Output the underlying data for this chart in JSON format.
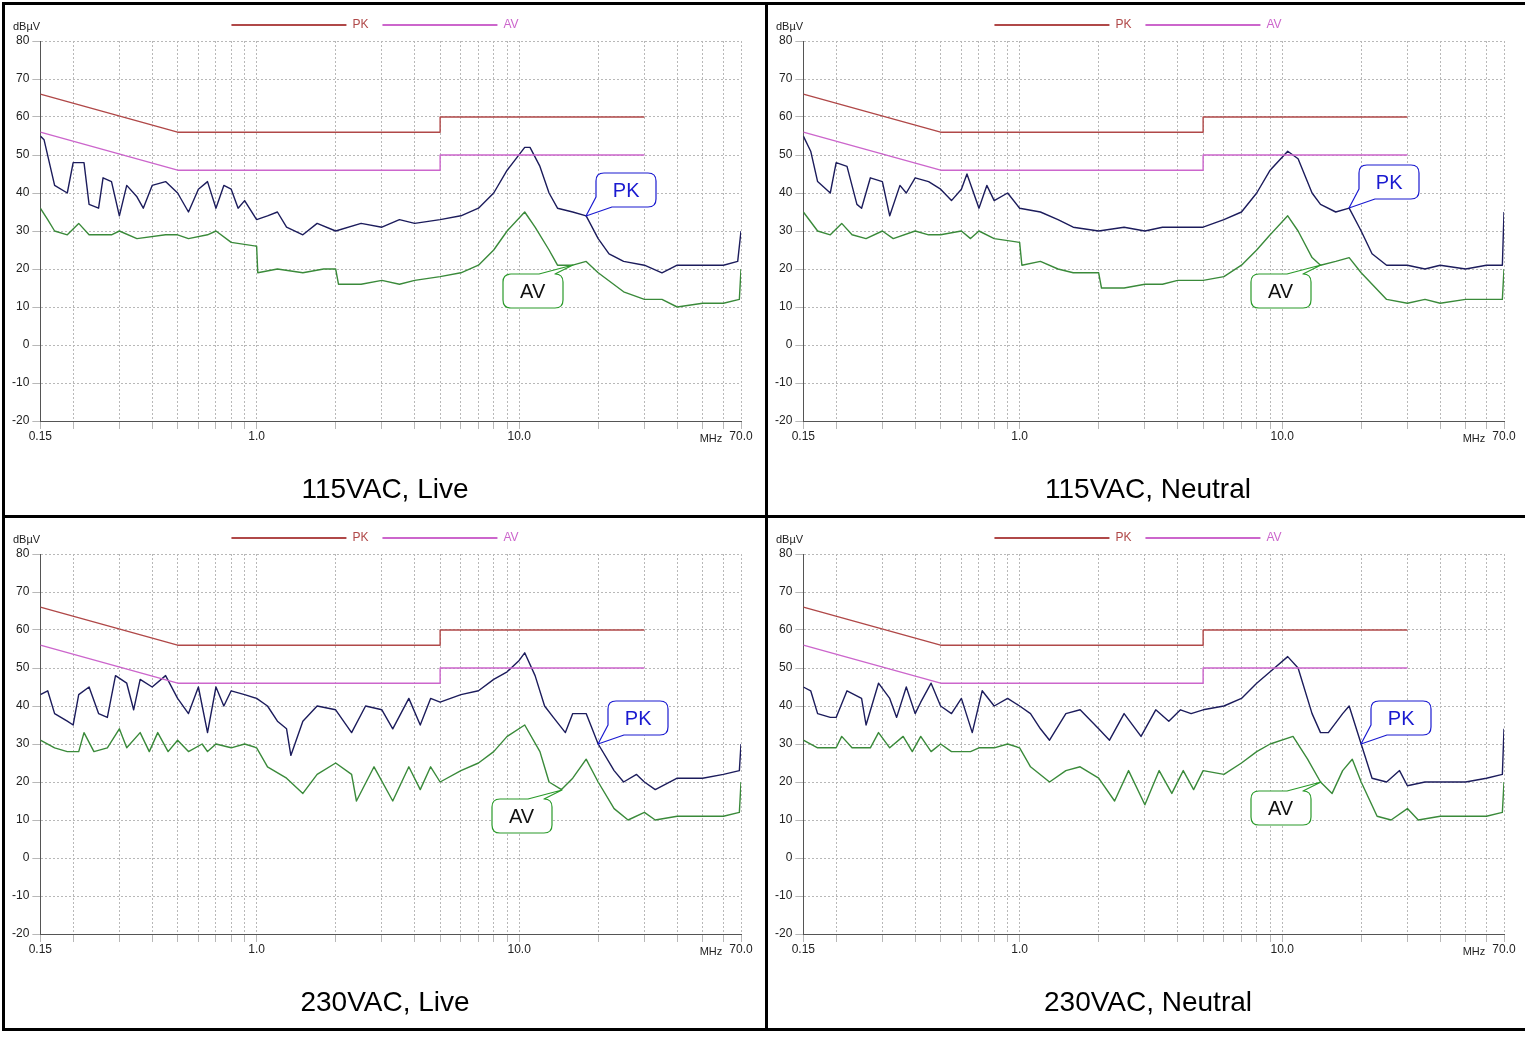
{
  "chart_data": [
    {
      "type": "line",
      "title": "115VAC, Live",
      "xlabel": "MHz",
      "ylabel": "dBµV",
      "log": "x",
      "grid": true,
      "legend": "top",
      "xlim": [
        0.15,
        70
      ],
      "ylim": [
        -20,
        80
      ],
      "xticks": [
        {
          "value": 0.15,
          "label": "0.15"
        },
        {
          "value": 0.2,
          "label": null
        },
        {
          "value": 0.3,
          "label": null
        },
        {
          "value": 0.4,
          "label": null
        },
        {
          "value": 0.5,
          "label": null
        },
        {
          "value": 0.6,
          "label": null
        },
        {
          "value": 0.7,
          "label": null
        },
        {
          "value": 0.8,
          "label": null
        },
        {
          "value": 0.9,
          "label": null
        },
        {
          "value": 1,
          "label": "1.0"
        },
        {
          "value": 2,
          "label": null
        },
        {
          "value": 3,
          "label": null
        },
        {
          "value": 4,
          "label": null
        },
        {
          "value": 5,
          "label": null
        },
        {
          "value": 6,
          "label": null
        },
        {
          "value": 7,
          "label": null
        },
        {
          "value": 8,
          "label": null
        },
        {
          "value": 9,
          "label": null
        },
        {
          "value": 10,
          "label": "10.0"
        },
        {
          "value": 20,
          "label": null
        },
        {
          "value": 30,
          "label": null
        },
        {
          "value": 40,
          "label": null
        },
        {
          "value": 50,
          "label": null
        },
        {
          "value": 60,
          "label": null
        },
        {
          "value": 70,
          "label": "70.0"
        }
      ],
      "yticks": [
        -20,
        -10,
        0,
        10,
        20,
        30,
        40,
        50,
        60,
        70,
        80
      ],
      "series": [
        {
          "name": "PK",
          "type": "line",
          "color": "#b04848",
          "x": [
            0.15,
            0.5,
            5,
            5,
            30
          ],
          "values": [
            66,
            56,
            56,
            60,
            60
          ]
        },
        {
          "name": "AV",
          "type": "line",
          "color": "#cc66cc",
          "x": [
            0.15,
            0.5,
            5,
            5,
            30
          ],
          "values": [
            56,
            46,
            46,
            50,
            50
          ]
        },
        {
          "type": "line",
          "color": "#1c1c5c",
          "x": [
            0.15,
            0.155,
            0.17,
            0.19,
            0.2,
            0.22,
            0.23,
            0.25,
            0.26,
            0.28,
            0.3,
            0.32,
            0.35,
            0.37,
            0.4,
            0.45,
            0.5,
            0.55,
            0.6,
            0.65,
            0.7,
            0.75,
            0.8,
            0.85,
            0.9,
            1.0,
            1.1,
            1.2,
            1.3,
            1.5,
            1.7,
            2,
            2.5,
            3,
            3.5,
            4,
            5,
            6,
            7,
            8,
            9,
            10.5,
            11,
            12,
            13,
            14,
            16,
            18,
            20,
            22,
            25,
            30,
            35,
            40,
            50,
            60,
            68,
            70
          ],
          "values": [
            55,
            54,
            42,
            40,
            48,
            48,
            37,
            36,
            44,
            43,
            34,
            42,
            39,
            36,
            42,
            43,
            40,
            35,
            41,
            43,
            36,
            42,
            41,
            36,
            38,
            33,
            34,
            35,
            31,
            29,
            32,
            30,
            32,
            31,
            33,
            32,
            33,
            34,
            36,
            40,
            46,
            52,
            52,
            47,
            40,
            36,
            35,
            34,
            28,
            24,
            22,
            21,
            19,
            21,
            21,
            21,
            22,
            30
          ]
        },
        {
          "type": "line",
          "color": "#3a8a3a",
          "x": [
            0.15,
            0.16,
            0.17,
            0.19,
            0.21,
            0.23,
            0.28,
            0.3,
            0.35,
            0.45,
            0.5,
            0.55,
            0.65,
            0.7,
            0.8,
            1.0,
            1.01,
            1.2,
            1.5,
            1.8,
            2,
            2.05,
            2.5,
            3,
            3.5,
            4,
            5,
            6,
            7,
            8,
            9,
            10.5,
            11.5,
            13,
            14,
            16,
            18,
            20,
            25,
            30,
            35,
            40,
            50,
            60,
            69,
            70
          ],
          "values": [
            36,
            33,
            30,
            29,
            32,
            29,
            29,
            30,
            28,
            29,
            29,
            28,
            29,
            30,
            27,
            26,
            19,
            20,
            19,
            20,
            20,
            16,
            16,
            17,
            16,
            17,
            18,
            19,
            21,
            25,
            30,
            35,
            31,
            25,
            21,
            21,
            22,
            19,
            14,
            12,
            12,
            10,
            11,
            11,
            12,
            20
          ]
        }
      ],
      "annotations": [
        {
          "text": "PK",
          "x": 18,
          "y": 34
        },
        {
          "text": "AV",
          "x": 16,
          "y": 21
        }
      ]
    },
    {
      "type": "line",
      "title": "115VAC, Neutral",
      "xlabel": "MHz",
      "ylabel": "dBµV",
      "log": "x",
      "grid": true,
      "legend": "top",
      "xlim": [
        0.15,
        70
      ],
      "ylim": [
        -20,
        80
      ],
      "xticks": [
        {
          "value": 0.15,
          "label": "0.15"
        },
        {
          "value": 0.2,
          "label": null
        },
        {
          "value": 0.3,
          "label": null
        },
        {
          "value": 0.4,
          "label": null
        },
        {
          "value": 0.5,
          "label": null
        },
        {
          "value": 0.6,
          "label": null
        },
        {
          "value": 0.7,
          "label": null
        },
        {
          "value": 0.8,
          "label": null
        },
        {
          "value": 0.9,
          "label": null
        },
        {
          "value": 1,
          "label": "1.0"
        },
        {
          "value": 2,
          "label": null
        },
        {
          "value": 3,
          "label": null
        },
        {
          "value": 4,
          "label": null
        },
        {
          "value": 5,
          "label": null
        },
        {
          "value": 6,
          "label": null
        },
        {
          "value": 7,
          "label": null
        },
        {
          "value": 8,
          "label": null
        },
        {
          "value": 9,
          "label": null
        },
        {
          "value": 10,
          "label": "10.0"
        },
        {
          "value": 20,
          "label": null
        },
        {
          "value": 30,
          "label": null
        },
        {
          "value": 40,
          "label": null
        },
        {
          "value": 50,
          "label": null
        },
        {
          "value": 60,
          "label": null
        },
        {
          "value": 70,
          "label": "70.0"
        }
      ],
      "yticks": [
        -20,
        -10,
        0,
        10,
        20,
        30,
        40,
        50,
        60,
        70,
        80
      ],
      "series": [
        {
          "name": "PK",
          "type": "line",
          "color": "#b04848",
          "x": [
            0.15,
            0.5,
            5,
            5,
            30
          ],
          "values": [
            66,
            56,
            56,
            60,
            60
          ]
        },
        {
          "name": "AV",
          "type": "line",
          "color": "#cc66cc",
          "x": [
            0.15,
            0.5,
            5,
            5,
            30
          ],
          "values": [
            56,
            46,
            46,
            50,
            50
          ]
        },
        {
          "type": "line",
          "color": "#1c1c5c",
          "x": [
            0.15,
            0.16,
            0.17,
            0.19,
            0.2,
            0.22,
            0.24,
            0.25,
            0.27,
            0.3,
            0.32,
            0.35,
            0.37,
            0.4,
            0.45,
            0.5,
            0.55,
            0.6,
            0.63,
            0.7,
            0.75,
            0.8,
            0.9,
            1.0,
            1.2,
            1.4,
            1.6,
            2,
            2.5,
            3,
            3.5,
            4,
            5,
            6,
            7,
            8,
            9,
            10.5,
            11.5,
            13,
            14,
            16,
            18,
            20,
            22,
            25,
            30,
            35,
            40,
            50,
            60,
            69,
            70
          ],
          "values": [
            55,
            51,
            43,
            40,
            48,
            47,
            37,
            36,
            44,
            43,
            34,
            42,
            40,
            44,
            43,
            41,
            38,
            41,
            45,
            36,
            42,
            38,
            40,
            36,
            35,
            33,
            31,
            30,
            31,
            30,
            31,
            31,
            31,
            33,
            35,
            40,
            46,
            51,
            49,
            40,
            37,
            35,
            36,
            30,
            24,
            21,
            21,
            20,
            21,
            20,
            21,
            21,
            35
          ]
        },
        {
          "type": "line",
          "color": "#3a8a3a",
          "x": [
            0.15,
            0.17,
            0.19,
            0.21,
            0.23,
            0.26,
            0.3,
            0.33,
            0.4,
            0.45,
            0.5,
            0.6,
            0.65,
            0.7,
            0.8,
            1.0,
            1.02,
            1.2,
            1.4,
            1.6,
            2,
            2.05,
            2.5,
            3,
            3.5,
            4,
            5,
            6,
            7,
            8,
            9,
            10.5,
            11.5,
            13,
            14,
            16,
            18,
            20,
            25,
            30,
            35,
            40,
            50,
            60,
            69,
            70
          ],
          "values": [
            35,
            30,
            29,
            32,
            29,
            28,
            30,
            28,
            30,
            29,
            29,
            30,
            28,
            30,
            28,
            27,
            21,
            22,
            20,
            19,
            19,
            15,
            15,
            16,
            16,
            17,
            17,
            18,
            21,
            25,
            29,
            34,
            30,
            23,
            21,
            22,
            23,
            19,
            12,
            11,
            12,
            11,
            12,
            12,
            12,
            20
          ]
        }
      ],
      "annotations": [
        {
          "text": "PK",
          "x": 18,
          "y": 36
        },
        {
          "text": "AV",
          "x": 14,
          "y": 21
        }
      ]
    },
    {
      "type": "line",
      "title": "230VAC, Live",
      "xlabel": "MHz",
      "ylabel": "dBµV",
      "log": "x",
      "grid": true,
      "legend": "top",
      "xlim": [
        0.15,
        70
      ],
      "ylim": [
        -20,
        80
      ],
      "xticks": [
        {
          "value": 0.15,
          "label": "0.15"
        },
        {
          "value": 0.2,
          "label": null
        },
        {
          "value": 0.3,
          "label": null
        },
        {
          "value": 0.4,
          "label": null
        },
        {
          "value": 0.5,
          "label": null
        },
        {
          "value": 0.6,
          "label": null
        },
        {
          "value": 0.7,
          "label": null
        },
        {
          "value": 0.8,
          "label": null
        },
        {
          "value": 0.9,
          "label": null
        },
        {
          "value": 1,
          "label": "1.0"
        },
        {
          "value": 2,
          "label": null
        },
        {
          "value": 3,
          "label": null
        },
        {
          "value": 4,
          "label": null
        },
        {
          "value": 5,
          "label": null
        },
        {
          "value": 6,
          "label": null
        },
        {
          "value": 7,
          "label": null
        },
        {
          "value": 8,
          "label": null
        },
        {
          "value": 9,
          "label": null
        },
        {
          "value": 10,
          "label": "10.0"
        },
        {
          "value": 20,
          "label": null
        },
        {
          "value": 30,
          "label": null
        },
        {
          "value": 40,
          "label": null
        },
        {
          "value": 50,
          "label": null
        },
        {
          "value": 60,
          "label": null
        },
        {
          "value": 70,
          "label": "70.0"
        }
      ],
      "yticks": [
        -20,
        -10,
        0,
        10,
        20,
        30,
        40,
        50,
        60,
        70,
        80
      ],
      "series": [
        {
          "name": "PK",
          "type": "line",
          "color": "#b04848",
          "x": [
            0.15,
            0.5,
            5,
            5,
            30
          ],
          "values": [
            66,
            56,
            56,
            60,
            60
          ]
        },
        {
          "name": "AV",
          "type": "line",
          "color": "#cc66cc",
          "x": [
            0.15,
            0.5,
            5,
            5,
            30
          ],
          "values": [
            56,
            46,
            46,
            50,
            50
          ]
        },
        {
          "type": "line",
          "color": "#1c1c5c",
          "x": [
            0.15,
            0.16,
            0.17,
            0.19,
            0.2,
            0.21,
            0.23,
            0.25,
            0.27,
            0.29,
            0.32,
            0.34,
            0.36,
            0.4,
            0.45,
            0.5,
            0.55,
            0.6,
            0.65,
            0.7,
            0.75,
            0.8,
            0.9,
            1.0,
            1.1,
            1.2,
            1.3,
            1.35,
            1.5,
            1.7,
            2,
            2.3,
            2.6,
            3,
            3.3,
            3.8,
            4.2,
            4.6,
            5,
            6,
            7,
            8,
            9,
            10,
            10.5,
            11.5,
            12.5,
            13.5,
            15,
            16,
            18,
            20,
            23,
            25,
            28,
            30,
            33,
            40,
            50,
            60,
            69,
            70
          ],
          "values": [
            43,
            44,
            38,
            36,
            35,
            43,
            45,
            38,
            37,
            48,
            46,
            39,
            47,
            45,
            48,
            42,
            38,
            45,
            33,
            45,
            40,
            44,
            43,
            42,
            40,
            36,
            34,
            27,
            36,
            40,
            39,
            33,
            40,
            39,
            34,
            42,
            35,
            42,
            41,
            43,
            44,
            47,
            49,
            52,
            54,
            48,
            40,
            37,
            33,
            38,
            38,
            30,
            23,
            20,
            22,
            20,
            18,
            21,
            21,
            22,
            23,
            30
          ]
        },
        {
          "type": "line",
          "color": "#3a8a3a",
          "x": [
            0.15,
            0.17,
            0.19,
            0.21,
            0.22,
            0.24,
            0.27,
            0.3,
            0.32,
            0.36,
            0.39,
            0.42,
            0.46,
            0.5,
            0.55,
            0.62,
            0.65,
            0.7,
            0.8,
            0.9,
            1.0,
            1.1,
            1.3,
            1.5,
            1.7,
            2,
            2.3,
            2.4,
            2.8,
            3.3,
            3.8,
            4.2,
            4.6,
            5,
            6,
            7,
            8,
            9,
            10.5,
            12,
            13,
            14.5,
            16,
            18,
            20,
            23,
            26,
            30,
            33,
            40,
            50,
            60,
            69,
            70
          ],
          "values": [
            31,
            29,
            28,
            28,
            33,
            28,
            29,
            34,
            29,
            33,
            28,
            33,
            28,
            31,
            28,
            30,
            28,
            30,
            29,
            30,
            29,
            24,
            21,
            17,
            22,
            25,
            22,
            15,
            24,
            15,
            24,
            18,
            24,
            20,
            23,
            25,
            28,
            32,
            35,
            28,
            20,
            18,
            21,
            26,
            20,
            13,
            10,
            12,
            10,
            11,
            11,
            11,
            12,
            20
          ]
        }
      ],
      "annotations": [
        {
          "text": "PK",
          "x": 20,
          "y": 30
        },
        {
          "text": "AV",
          "x": 14.5,
          "y": 18
        }
      ]
    },
    {
      "type": "line",
      "title": "230VAC, Neutral",
      "xlabel": "MHz",
      "ylabel": "dBµV",
      "log": "x",
      "grid": true,
      "legend": "top",
      "xlim": [
        0.15,
        70
      ],
      "ylim": [
        -20,
        80
      ],
      "xticks": [
        {
          "value": 0.15,
          "label": "0.15"
        },
        {
          "value": 0.2,
          "label": null
        },
        {
          "value": 0.3,
          "label": null
        },
        {
          "value": 0.4,
          "label": null
        },
        {
          "value": 0.5,
          "label": null
        },
        {
          "value": 0.6,
          "label": null
        },
        {
          "value": 0.7,
          "label": null
        },
        {
          "value": 0.8,
          "label": null
        },
        {
          "value": 0.9,
          "label": null
        },
        {
          "value": 1,
          "label": "1.0"
        },
        {
          "value": 2,
          "label": null
        },
        {
          "value": 3,
          "label": null
        },
        {
          "value": 4,
          "label": null
        },
        {
          "value": 5,
          "label": null
        },
        {
          "value": 6,
          "label": null
        },
        {
          "value": 7,
          "label": null
        },
        {
          "value": 8,
          "label": null
        },
        {
          "value": 9,
          "label": null
        },
        {
          "value": 10,
          "label": "10.0"
        },
        {
          "value": 20,
          "label": null
        },
        {
          "value": 30,
          "label": null
        },
        {
          "value": 40,
          "label": null
        },
        {
          "value": 50,
          "label": null
        },
        {
          "value": 60,
          "label": null
        },
        {
          "value": 70,
          "label": "70.0"
        }
      ],
      "yticks": [
        -20,
        -10,
        0,
        10,
        20,
        30,
        40,
        50,
        60,
        70,
        80
      ],
      "series": [
        {
          "name": "PK",
          "type": "line",
          "color": "#b04848",
          "x": [
            0.15,
            0.5,
            5,
            5,
            30
          ],
          "values": [
            66,
            56,
            56,
            60,
            60
          ]
        },
        {
          "name": "AV",
          "type": "line",
          "color": "#cc66cc",
          "x": [
            0.15,
            0.5,
            5,
            5,
            30
          ],
          "values": [
            56,
            46,
            46,
            50,
            50
          ]
        },
        {
          "type": "line",
          "color": "#1c1c5c",
          "x": [
            0.15,
            0.16,
            0.17,
            0.19,
            0.2,
            0.22,
            0.25,
            0.26,
            0.29,
            0.32,
            0.34,
            0.37,
            0.4,
            0.42,
            0.46,
            0.5,
            0.55,
            0.6,
            0.66,
            0.72,
            0.8,
            0.9,
            1.0,
            1.1,
            1.2,
            1.3,
            1.5,
            1.7,
            2,
            2.2,
            2.5,
            2.9,
            3.3,
            3.7,
            4.1,
            4.5,
            5,
            6,
            7,
            8,
            9,
            10.5,
            11.5,
            13,
            14,
            15,
            17,
            18,
            20,
            22,
            25,
            28,
            30,
            35,
            40,
            50,
            60,
            69,
            70
          ],
          "values": [
            45,
            44,
            38,
            37,
            37,
            44,
            42,
            35,
            46,
            42,
            37,
            45,
            38,
            41,
            46,
            40,
            38,
            42,
            33,
            44,
            40,
            42,
            40,
            38,
            34,
            31,
            38,
            39,
            34,
            31,
            38,
            32,
            39,
            36,
            39,
            38,
            39,
            40,
            42,
            46,
            49,
            53,
            50,
            38,
            33,
            33,
            38,
            40,
            30,
            21,
            20,
            23,
            19,
            20,
            20,
            20,
            21,
            22,
            34
          ]
        },
        {
          "type": "line",
          "color": "#3a8a3a",
          "x": [
            0.15,
            0.17,
            0.2,
            0.21,
            0.23,
            0.27,
            0.29,
            0.32,
            0.36,
            0.39,
            0.42,
            0.46,
            0.5,
            0.55,
            0.65,
            0.7,
            0.8,
            0.9,
            1.0,
            1.1,
            1.3,
            1.5,
            1.7,
            2,
            2.3,
            2.6,
            3,
            3.4,
            3.8,
            4.2,
            4.6,
            5,
            6,
            7,
            8,
            9,
            11,
            12.5,
            14,
            15.5,
            17,
            18.5,
            20,
            23,
            26,
            30,
            33,
            40,
            50,
            60,
            69,
            70
          ],
          "values": [
            31,
            29,
            29,
            32,
            29,
            29,
            33,
            29,
            32,
            28,
            32,
            28,
            30,
            28,
            28,
            29,
            29,
            30,
            29,
            24,
            20,
            23,
            24,
            21,
            15,
            23,
            14,
            23,
            17,
            23,
            18,
            23,
            22,
            25,
            28,
            30,
            32,
            26,
            20,
            17,
            23,
            26,
            20,
            11,
            10,
            13,
            10,
            11,
            11,
            11,
            12,
            20
          ]
        }
      ],
      "annotations": [
        {
          "text": "PK",
          "x": 20,
          "y": 30
        },
        {
          "text": "AV",
          "x": 14,
          "y": 20
        }
      ]
    }
  ]
}
